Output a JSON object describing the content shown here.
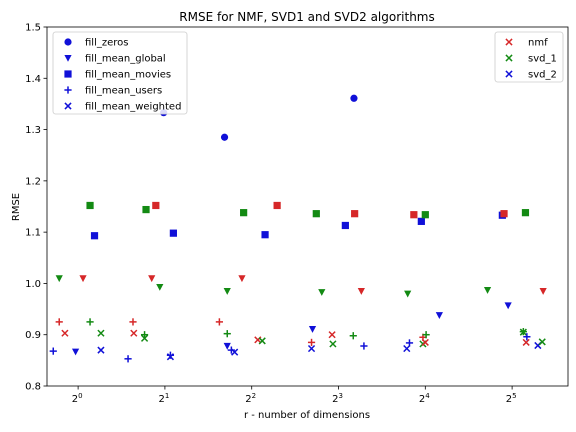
{
  "chart_data": {
    "type": "scatter",
    "title": "RMSE for NMF, SVD1 and SVD2 algorithms",
    "xlabel": "r - number of dimensions",
    "ylabel": "RMSE",
    "xscale": "log2",
    "xlim": [
      0.78,
      50
    ],
    "ylim": [
      0.8,
      1.5
    ],
    "xticks": [
      1,
      2,
      4,
      8,
      16,
      32
    ],
    "xtick_labels": [
      [
        "2",
        "0"
      ],
      [
        "2",
        "1"
      ],
      [
        "2",
        "2"
      ],
      [
        "2",
        "3"
      ],
      [
        "2",
        "4"
      ],
      [
        "2",
        "5"
      ]
    ],
    "yticks": [
      0.8,
      0.9,
      1.0,
      1.1,
      1.2,
      1.3,
      1.4,
      1.5
    ],
    "ytick_labels": [
      "0.8",
      "0.9",
      "1.0",
      "1.1",
      "1.2",
      "1.3",
      "1.4",
      "1.5"
    ],
    "grid": false,
    "legend_fill": {
      "placement": "top-left",
      "entries": [
        {
          "label": "fill_zeros",
          "marker": "circle"
        },
        {
          "label": "fill_mean_global",
          "marker": "triangle-down"
        },
        {
          "label": "fill_mean_movies",
          "marker": "square"
        },
        {
          "label": "fill_mean_users",
          "marker": "plus"
        },
        {
          "label": "fill_mean_weighted",
          "marker": "x"
        }
      ]
    },
    "legend_algo": {
      "placement": "top-right",
      "entries": [
        {
          "label": "nmf",
          "color": "#d62728"
        },
        {
          "label": "svd_1",
          "color": "#138a13"
        },
        {
          "label": "svd_2",
          "color": "#1010d8"
        }
      ]
    },
    "colors": {
      "nmf": "#d62728",
      "svd_1": "#138a13",
      "svd_2": "#1010d8"
    },
    "points": [
      {
        "algo": "svd_2",
        "marker": "plus",
        "x": 0.82,
        "y": 0.868
      },
      {
        "algo": "nmf",
        "marker": "plus",
        "x": 0.86,
        "y": 0.925
      },
      {
        "algo": "svd_1",
        "marker": "triangle-down",
        "x": 0.86,
        "y": 1.01
      },
      {
        "algo": "nmf",
        "marker": "x",
        "x": 0.9,
        "y": 0.903
      },
      {
        "algo": "svd_2",
        "marker": "triangle-down",
        "x": 0.98,
        "y": 0.867
      },
      {
        "algo": "nmf",
        "marker": "triangle-down",
        "x": 1.04,
        "y": 1.01
      },
      {
        "algo": "svd_1",
        "marker": "plus",
        "x": 1.1,
        "y": 0.925
      },
      {
        "algo": "svd_1",
        "marker": "square",
        "x": 1.1,
        "y": 1.152
      },
      {
        "algo": "svd_2",
        "marker": "square",
        "x": 1.14,
        "y": 1.093
      },
      {
        "algo": "svd_1",
        "marker": "x",
        "x": 1.2,
        "y": 0.903
      },
      {
        "algo": "svd_2",
        "marker": "x",
        "x": 1.2,
        "y": 0.87
      },
      {
        "algo": "svd_2",
        "marker": "plus",
        "x": 1.49,
        "y": 0.853
      },
      {
        "algo": "nmf",
        "marker": "plus",
        "x": 1.55,
        "y": 0.925
      },
      {
        "algo": "nmf",
        "marker": "x",
        "x": 1.56,
        "y": 0.903
      },
      {
        "algo": "svd_1",
        "marker": "plus",
        "x": 1.7,
        "y": 0.9
      },
      {
        "algo": "svd_1",
        "marker": "x",
        "x": 1.7,
        "y": 0.893
      },
      {
        "algo": "svd_1",
        "marker": "square",
        "x": 1.72,
        "y": 1.144
      },
      {
        "algo": "nmf",
        "marker": "triangle-down",
        "x": 1.8,
        "y": 1.01
      },
      {
        "algo": "nmf",
        "marker": "square",
        "x": 1.86,
        "y": 1.152
      },
      {
        "algo": "svd_1",
        "marker": "triangle-down",
        "x": 1.92,
        "y": 0.993
      },
      {
        "algo": "svd_2",
        "marker": "circle",
        "x": 1.98,
        "y": 1.333
      },
      {
        "algo": "svd_2",
        "marker": "plus",
        "x": 2.09,
        "y": 0.86
      },
      {
        "algo": "svd_2",
        "marker": "x",
        "x": 2.09,
        "y": 0.857
      },
      {
        "algo": "svd_2",
        "marker": "square",
        "x": 2.14,
        "y": 1.098
      },
      {
        "algo": "nmf",
        "marker": "plus",
        "x": 3.09,
        "y": 0.925
      },
      {
        "algo": "svd_2",
        "marker": "circle",
        "x": 3.22,
        "y": 1.285
      },
      {
        "algo": "svd_1",
        "marker": "plus",
        "x": 3.29,
        "y": 0.902
      },
      {
        "algo": "svd_2",
        "marker": "triangle-down",
        "x": 3.29,
        "y": 0.878
      },
      {
        "algo": "svd_1",
        "marker": "triangle-down",
        "x": 3.29,
        "y": 0.985
      },
      {
        "algo": "svd_2",
        "marker": "plus",
        "x": 3.4,
        "y": 0.87
      },
      {
        "algo": "svd_2",
        "marker": "x",
        "x": 3.49,
        "y": 0.866
      },
      {
        "algo": "nmf",
        "marker": "triangle-down",
        "x": 3.7,
        "y": 1.01
      },
      {
        "algo": "svd_1",
        "marker": "square",
        "x": 3.75,
        "y": 1.138
      },
      {
        "algo": "nmf",
        "marker": "x",
        "x": 4.2,
        "y": 0.89
      },
      {
        "algo": "svd_1",
        "marker": "x",
        "x": 4.35,
        "y": 0.888
      },
      {
        "algo": "svd_2",
        "marker": "square",
        "x": 4.45,
        "y": 1.095
      },
      {
        "algo": "nmf",
        "marker": "square",
        "x": 4.9,
        "y": 1.152
      },
      {
        "algo": "nmf",
        "marker": "plus",
        "x": 6.45,
        "y": 0.885
      },
      {
        "algo": "svd_2",
        "marker": "x",
        "x": 6.45,
        "y": 0.873
      },
      {
        "algo": "svd_2",
        "marker": "triangle-down",
        "x": 6.5,
        "y": 0.911
      },
      {
        "algo": "svd_1",
        "marker": "square",
        "x": 6.7,
        "y": 1.136
      },
      {
        "algo": "svd_1",
        "marker": "triangle-down",
        "x": 7.0,
        "y": 0.983
      },
      {
        "algo": "nmf",
        "marker": "x",
        "x": 7.6,
        "y": 0.9
      },
      {
        "algo": "svd_1",
        "marker": "x",
        "x": 7.65,
        "y": 0.882
      },
      {
        "algo": "svd_2",
        "marker": "square",
        "x": 8.45,
        "y": 1.113
      },
      {
        "algo": "svd_1",
        "marker": "plus",
        "x": 9.0,
        "y": 0.898
      },
      {
        "algo": "nmf",
        "marker": "square",
        "x": 9.1,
        "y": 1.136
      },
      {
        "algo": "svd_2",
        "marker": "circle",
        "x": 9.05,
        "y": 1.361
      },
      {
        "algo": "nmf",
        "marker": "triangle-down",
        "x": 9.6,
        "y": 0.985
      },
      {
        "algo": "svd_2",
        "marker": "plus",
        "x": 9.8,
        "y": 0.878
      },
      {
        "algo": "svd_2",
        "marker": "x",
        "x": 13.8,
        "y": 0.873
      },
      {
        "algo": "svd_2",
        "marker": "plus",
        "x": 14.1,
        "y": 0.884
      },
      {
        "algo": "svd_1",
        "marker": "triangle-down",
        "x": 13.9,
        "y": 0.98
      },
      {
        "algo": "nmf",
        "marker": "square",
        "x": 14.6,
        "y": 1.134
      },
      {
        "algo": "svd_2",
        "marker": "square",
        "x": 15.5,
        "y": 1.121
      },
      {
        "algo": "nmf",
        "marker": "plus",
        "x": 15.7,
        "y": 0.895
      },
      {
        "algo": "svd_1",
        "marker": "x",
        "x": 15.7,
        "y": 0.882
      },
      {
        "algo": "nmf",
        "marker": "x",
        "x": 16.0,
        "y": 0.885
      },
      {
        "algo": "svd_1",
        "marker": "square",
        "x": 16.0,
        "y": 1.134
      },
      {
        "algo": "svd_1",
        "marker": "plus",
        "x": 16.1,
        "y": 0.9
      },
      {
        "algo": "svd_2",
        "marker": "triangle-down",
        "x": 17.9,
        "y": 0.938
      },
      {
        "algo": "svd_1",
        "marker": "triangle-down",
        "x": 26.3,
        "y": 0.987
      },
      {
        "algo": "svd_2",
        "marker": "square",
        "x": 29.6,
        "y": 1.133
      },
      {
        "algo": "nmf",
        "marker": "square",
        "x": 30.0,
        "y": 1.136
      },
      {
        "algo": "svd_2",
        "marker": "triangle-down",
        "x": 31.0,
        "y": 0.957
      },
      {
        "algo": "svd_1",
        "marker": "plus",
        "x": 35.0,
        "y": 0.906
      },
      {
        "algo": "svd_1",
        "marker": "x",
        "x": 35.0,
        "y": 0.905
      },
      {
        "algo": "svd_1",
        "marker": "square",
        "x": 35.6,
        "y": 1.138
      },
      {
        "algo": "nmf",
        "marker": "x",
        "x": 35.8,
        "y": 0.885
      },
      {
        "algo": "svd_2",
        "marker": "plus",
        "x": 36.0,
        "y": 0.896
      },
      {
        "algo": "svd_2",
        "marker": "x",
        "x": 39.3,
        "y": 0.879
      },
      {
        "algo": "svd_1",
        "marker": "x",
        "x": 40.7,
        "y": 0.886
      },
      {
        "algo": "nmf",
        "marker": "triangle-down",
        "x": 41.0,
        "y": 0.985
      }
    ]
  }
}
